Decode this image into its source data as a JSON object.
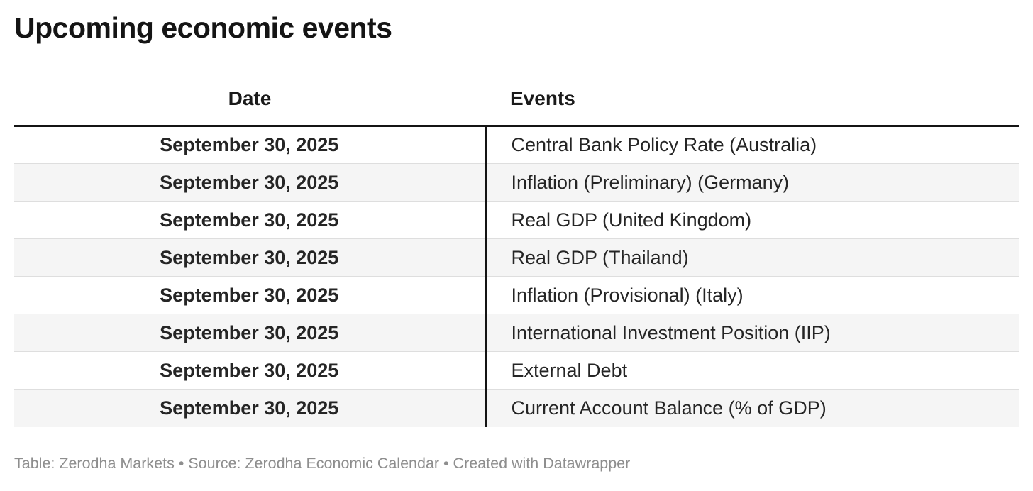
{
  "title": "Upcoming economic events",
  "chart_data": {
    "type": "table",
    "title": "Upcoming economic events",
    "columns": [
      "Date",
      "Events"
    ],
    "rows": [
      [
        "September 30, 2025",
        "Central Bank Policy Rate (Australia)"
      ],
      [
        "September 30, 2025",
        "Inflation (Preliminary) (Germany)"
      ],
      [
        "September 30, 2025",
        "Real GDP (United Kingdom)"
      ],
      [
        "September 30, 2025",
        "Real GDP (Thailand)"
      ],
      [
        "September 30, 2025",
        "Inflation (Provisional) (Italy)"
      ],
      [
        "September 30, 2025",
        "International Investment Position (IIP)"
      ],
      [
        "September 30, 2025",
        "External Debt"
      ],
      [
        "September 30, 2025",
        "Current Account Balance (% of GDP)"
      ]
    ],
    "layout_hints": {
      "date_column_alignment": "center",
      "events_column_alignment": "left",
      "alternating_row_stripes": true,
      "header_rule": "thick-black",
      "column_divider": "vertical-black-line"
    }
  },
  "footer": {
    "text": "Table: Zerodha Markets • Source: Zerodha Economic Calendar • Created with Datawrapper"
  },
  "colors": {
    "title_text": "#141414",
    "header_text": "#1a1a1a",
    "cell_text": "#252525",
    "alt_row_background": "#f5f5f5",
    "row_separator": "#dedede",
    "header_rule": "#141414",
    "column_divider": "#141414",
    "footer_text": "#8e8e8e",
    "background": "#ffffff"
  }
}
